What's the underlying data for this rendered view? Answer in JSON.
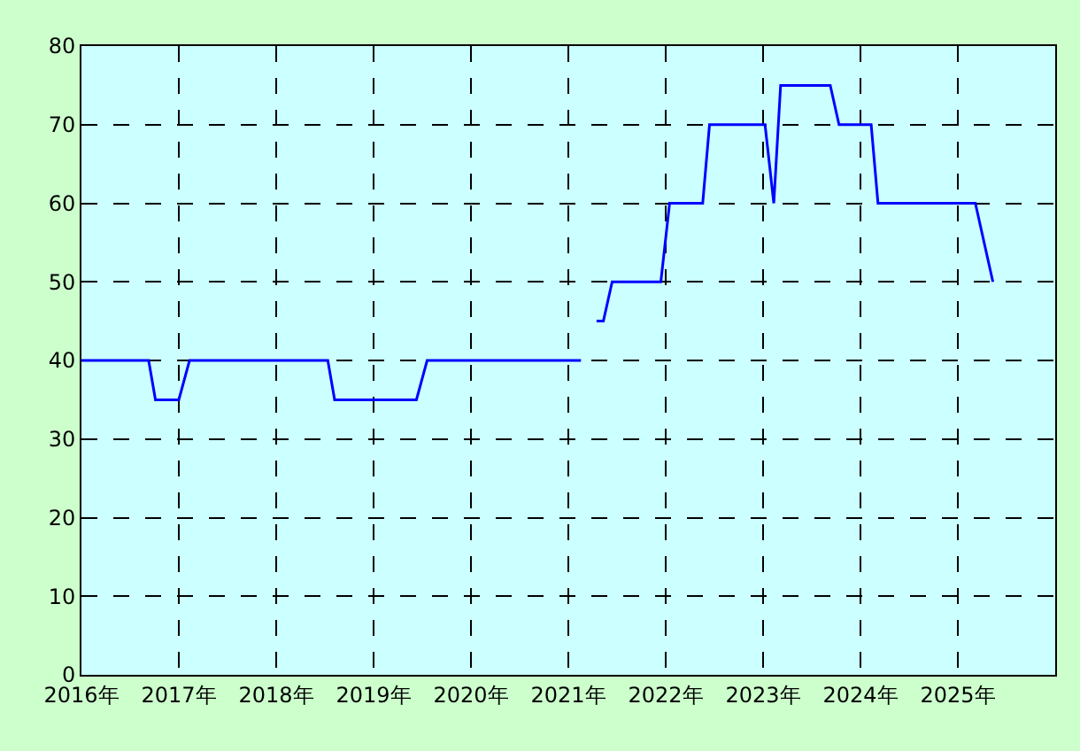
{
  "chart_data": {
    "type": "line",
    "x": [
      2016.0,
      2016.69,
      2016.76,
      2017.0,
      2017.11,
      2018.53,
      2018.6,
      2019.44,
      2019.55,
      2021.13,
      2021.2,
      2021.29,
      2021.36,
      2021.45,
      2021.95,
      2022.04,
      2022.38,
      2022.45,
      2023.02,
      2023.11,
      2023.18,
      2023.69,
      2023.78,
      2024.11,
      2024.18,
      2025.18,
      2025.36
    ],
    "series": [
      {
        "color": "#0000ff",
        "values": [
          40,
          40,
          35,
          35,
          40,
          40,
          35,
          35,
          40,
          40,
          null,
          45,
          45,
          50,
          50,
          60,
          60,
          70,
          70,
          60,
          75,
          75,
          70,
          70,
          60,
          60,
          50
        ]
      }
    ],
    "xlim": [
      2016,
      2026
    ],
    "xticks": [
      {
        "value": 2016,
        "label": "2016年"
      },
      {
        "value": 2017,
        "label": "2017年"
      },
      {
        "value": 2018,
        "label": "2018年"
      },
      {
        "value": 2019,
        "label": "2019年"
      },
      {
        "value": 2020,
        "label": "2020年"
      },
      {
        "value": 2021,
        "label": "2021年"
      },
      {
        "value": 2022,
        "label": "2022年"
      },
      {
        "value": 2023,
        "label": "2023年"
      },
      {
        "value": 2024,
        "label": "2024年"
      },
      {
        "value": 2025,
        "label": "2025年"
      }
    ],
    "ylim": [
      0,
      80
    ],
    "yticks": [
      0,
      10,
      20,
      30,
      40,
      50,
      60,
      70,
      80
    ],
    "grid": true,
    "marker": "none",
    "line_style": "solid"
  }
}
